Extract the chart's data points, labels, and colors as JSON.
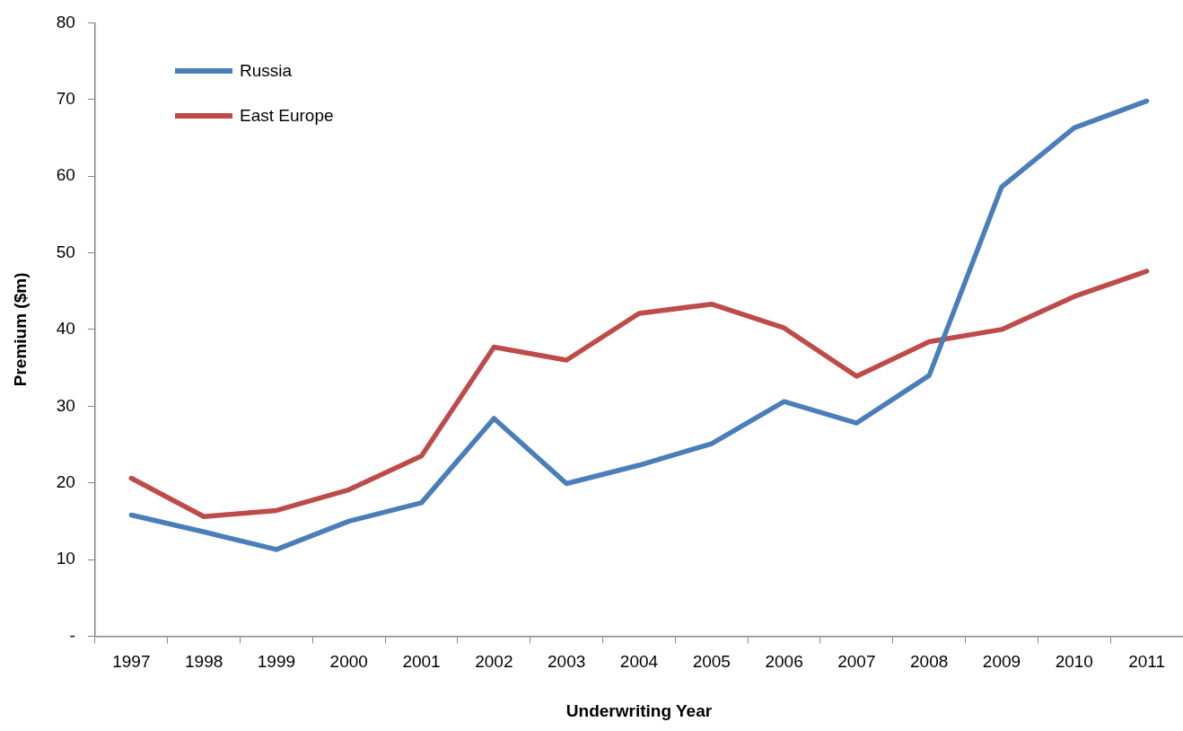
{
  "chart_data": {
    "type": "line",
    "xlabel": "Underwriting Year",
    "ylabel": "Premium ($m)",
    "categories": [
      "1997",
      "1998",
      "1999",
      "2000",
      "2001",
      "2002",
      "2003",
      "2004",
      "2005",
      "2006",
      "2007",
      "2008",
      "2009",
      "2010",
      "2011"
    ],
    "series": [
      {
        "name": "Russia",
        "color": "#4a7ebb",
        "values": [
          15.8,
          13.6,
          11.3,
          15.0,
          17.4,
          28.4,
          19.9,
          22.3,
          25.1,
          30.6,
          27.8,
          34.0,
          58.6,
          66.3,
          69.8
        ]
      },
      {
        "name": "East Europe",
        "color": "#be4b48",
        "values": [
          20.6,
          15.6,
          16.4,
          19.1,
          23.5,
          37.7,
          36.0,
          42.1,
          43.3,
          40.2,
          33.9,
          38.4,
          40.0,
          44.3,
          47.6
        ]
      }
    ],
    "ylim": [
      0,
      80
    ],
    "yticks": [
      {
        "value": 0,
        "label": "-"
      },
      10,
      20,
      30,
      40,
      50,
      60,
      70,
      80
    ],
    "grid": false,
    "legend": "top left",
    "marker": "none",
    "line_style": "solid"
  }
}
